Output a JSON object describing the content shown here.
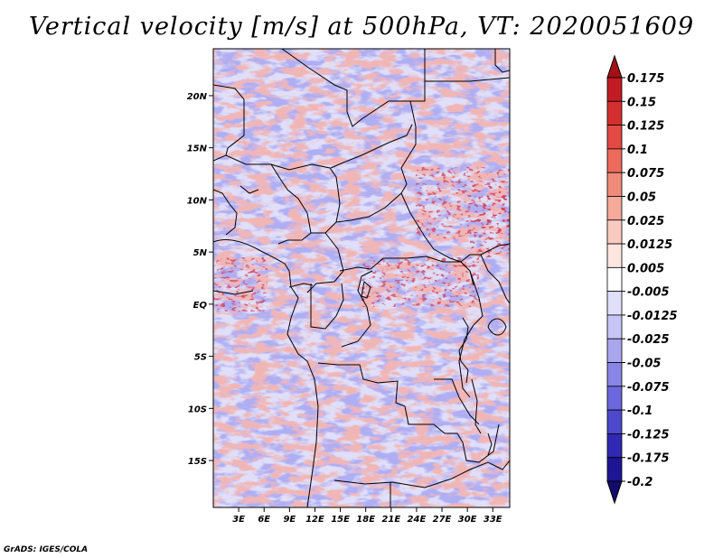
{
  "title": "Vertical velocity [m/s] at 500hPa, VT: 2020051609",
  "credit": "GrADS: IGES/COLA",
  "map": {
    "lat_range": [
      -19.5,
      24.5
    ],
    "lon_range": [
      0,
      35
    ],
    "lat_ticks": [
      {
        "value": 20,
        "label": "20N"
      },
      {
        "value": 15,
        "label": "15N"
      },
      {
        "value": 10,
        "label": "10N"
      },
      {
        "value": 5,
        "label": "5N"
      },
      {
        "value": 0,
        "label": "EQ"
      },
      {
        "value": -5,
        "label": "5S"
      },
      {
        "value": -10,
        "label": "10S"
      },
      {
        "value": -15,
        "label": "15S"
      }
    ],
    "lon_ticks": [
      {
        "value": 3,
        "label": "3E"
      },
      {
        "value": 6,
        "label": "6E"
      },
      {
        "value": 9,
        "label": "9E"
      },
      {
        "value": 12,
        "label": "12E"
      },
      {
        "value": 15,
        "label": "15E"
      },
      {
        "value": 18,
        "label": "18E"
      },
      {
        "value": 21,
        "label": "21E"
      },
      {
        "value": 24,
        "label": "24E"
      },
      {
        "value": 27,
        "label": "27E"
      },
      {
        "value": 30,
        "label": "30E"
      },
      {
        "value": 33,
        "label": "33E"
      }
    ]
  },
  "colorbar": {
    "labels": [
      "0.175",
      "0.15",
      "0.125",
      "0.1",
      "0.075",
      "0.05",
      "0.025",
      "0.0125",
      "0.005",
      "-0.005",
      "-0.0125",
      "-0.025",
      "-0.05",
      "-0.075",
      "-0.1",
      "-0.125",
      "-0.175",
      "-0.2"
    ],
    "colors": [
      "#a50f15",
      "#c11b24",
      "#d42f2f",
      "#e34a43",
      "#ec6b5d",
      "#f08a7b",
      "#f5aa9b",
      "#f9cbc0",
      "#fde6e0",
      "#ffffff",
      "#e1e0fa",
      "#c7c5f5",
      "#a9a6ee",
      "#8985e6",
      "#6c67dc",
      "#4e48cc",
      "#3029b4",
      "#1d1592",
      "#140b6e"
    ]
  }
}
